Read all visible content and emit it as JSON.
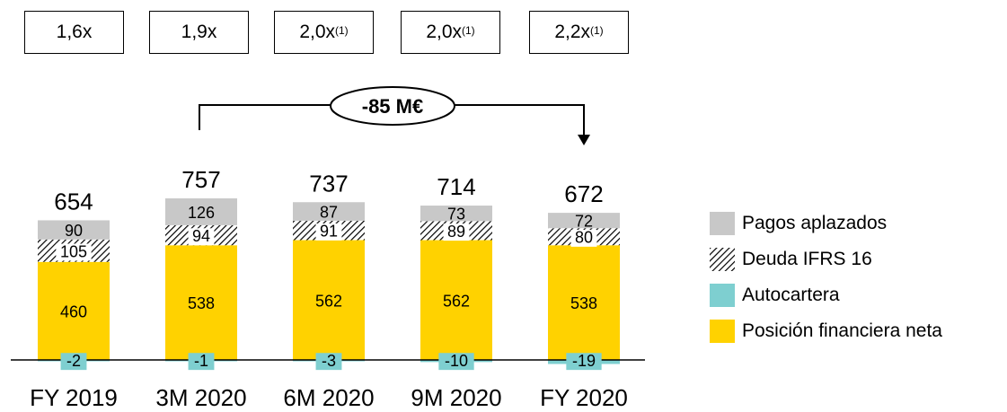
{
  "ratios": [
    {
      "value": "1,6x",
      "note": ""
    },
    {
      "value": "1,9x",
      "note": ""
    },
    {
      "value": "2,0x",
      "note": "(1)"
    },
    {
      "value": "2,0x",
      "note": "(1)"
    },
    {
      "value": "2,2x",
      "note": "(1)"
    }
  ],
  "callout": "-85 M€",
  "chart_data": {
    "type": "bar",
    "stacked": true,
    "categories": [
      "FY 2019",
      "3M 2020",
      "6M 2020",
      "9M 2020",
      "FY 2020"
    ],
    "totals": [
      654,
      757,
      737,
      714,
      672
    ],
    "series": [
      {
        "name": "Posición financiera neta",
        "values": [
          460,
          538,
          562,
          562,
          538
        ]
      },
      {
        "name": "Autocartera",
        "values": [
          -2,
          -1,
          -3,
          -10,
          -19
        ]
      },
      {
        "name": "Deuda IFRS 16",
        "values": [
          105,
          94,
          91,
          89,
          80
        ]
      },
      {
        "name": "Pagos aplazados",
        "values": [
          90,
          126,
          87,
          73,
          72
        ]
      }
    ],
    "colors": {
      "Posición financiera neta": "#FFD200",
      "Autocartera": "#7ECFD0",
      "Deuda IFRS 16": "hatch",
      "Pagos aplazados": "#C8C8C8"
    },
    "legend_position": "right",
    "grid": false
  },
  "legend": [
    {
      "label": "Pagos aplazados",
      "color": "#C8C8C8",
      "pattern": "solid"
    },
    {
      "label": "Deuda IFRS 16",
      "color": "#000000",
      "pattern": "hatch"
    },
    {
      "label": "Autocartera",
      "color": "#7ECFD0",
      "pattern": "solid"
    },
    {
      "label": "Posición financiera neta",
      "color": "#FFD200",
      "pattern": "solid"
    }
  ]
}
